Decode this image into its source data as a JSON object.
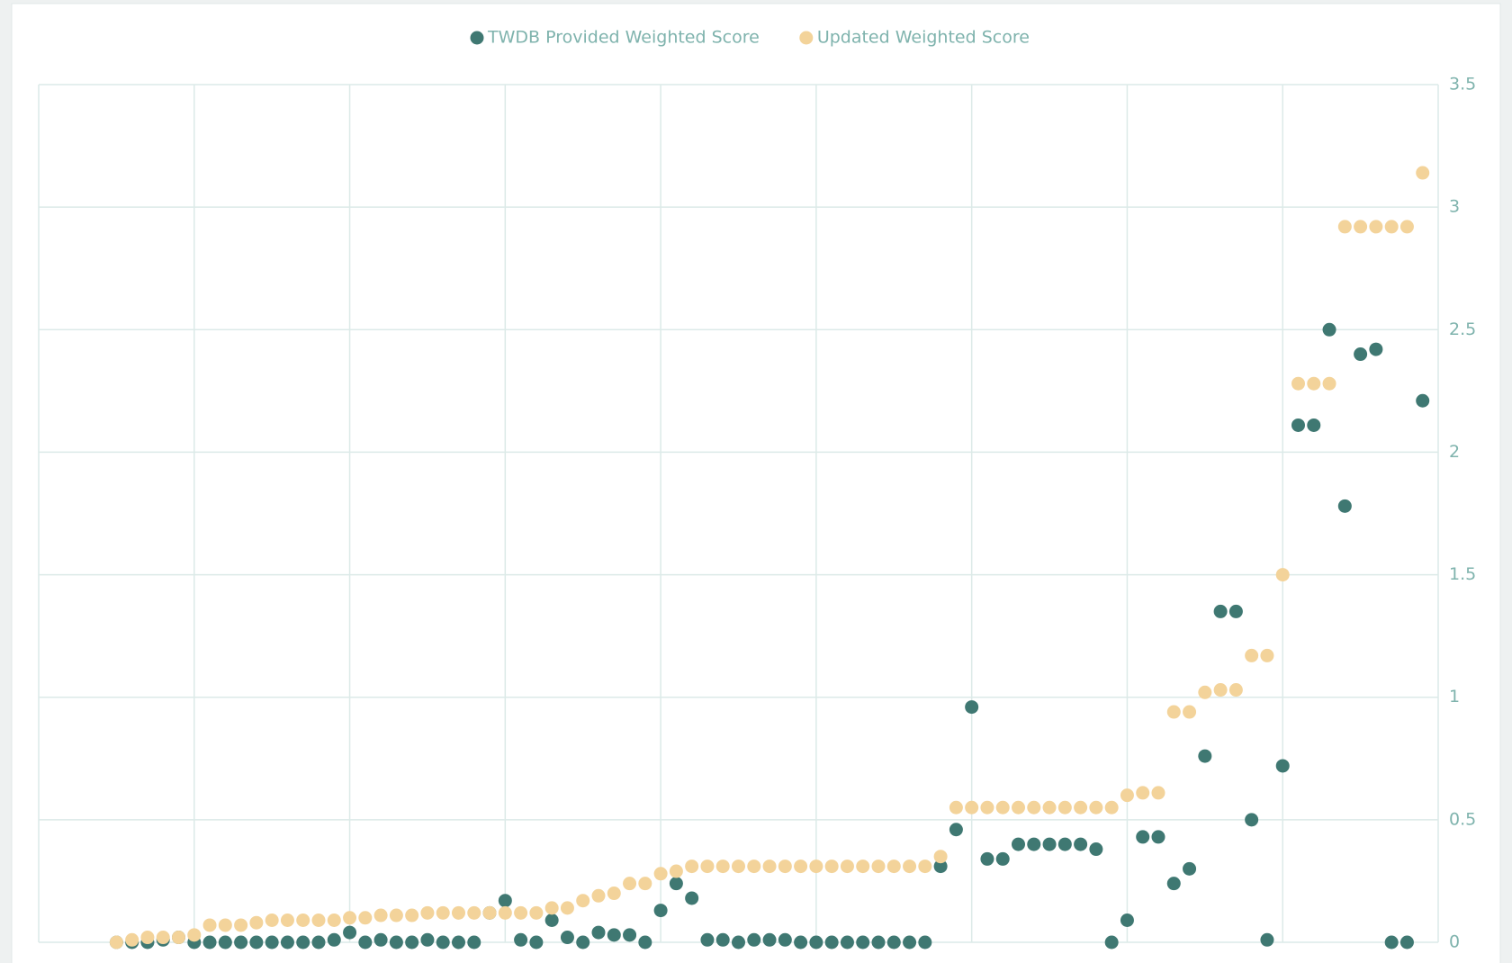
{
  "chart_data": {
    "type": "scatter",
    "x": [
      5,
      6,
      7,
      8,
      9,
      10,
      11,
      12,
      13,
      14,
      15,
      16,
      17,
      18,
      19,
      20,
      21,
      22,
      23,
      24,
      25,
      26,
      27,
      28,
      29,
      30,
      31,
      32,
      33,
      34,
      35,
      36,
      37,
      38,
      39,
      40,
      41,
      42,
      43,
      44,
      45,
      46,
      47,
      48,
      49,
      50,
      51,
      52,
      53,
      54,
      55,
      56,
      57,
      58,
      59,
      60,
      61,
      62,
      63,
      64,
      65,
      66,
      67,
      68,
      69,
      70,
      71,
      72,
      73,
      74,
      75,
      76,
      77,
      78,
      79,
      80,
      81,
      82,
      83,
      84,
      85,
      86,
      87,
      88,
      89
    ],
    "series": [
      {
        "name": "TWDB Provided Weighted Score",
        "color": "#3f7872",
        "values": [
          0,
          0,
          0,
          0.01,
          0.02,
          0,
          0,
          0,
          0,
          0,
          0,
          0,
          0,
          0,
          0.01,
          0.04,
          0,
          0.01,
          0,
          0,
          0.01,
          0,
          0,
          0,
          0.12,
          0.17,
          0.01,
          0,
          0.09,
          0.02,
          0,
          0.04,
          0.03,
          0.03,
          0,
          0.13,
          0.24,
          0.18,
          0.01,
          0.01,
          0,
          0.01,
          0.01,
          0.01,
          0,
          0,
          0,
          0,
          0,
          0,
          0,
          0,
          0,
          0.31,
          0.46,
          0.96,
          0.34,
          0.34,
          0.4,
          0.4,
          0.4,
          0.4,
          0.4,
          0.38,
          0,
          0.09,
          0.43,
          0.43,
          0.24,
          0.3,
          0.76,
          1.35,
          1.35,
          0.5,
          0.01,
          0.72,
          2.11,
          2.11,
          2.5,
          1.78,
          2.4,
          2.42,
          0,
          0,
          2.21
        ]
      },
      {
        "name": "Updated Weighted Score",
        "color": "#f3d39a",
        "values": [
          0,
          0.01,
          0.02,
          0.02,
          0.02,
          0.03,
          0.07,
          0.07,
          0.07,
          0.08,
          0.09,
          0.09,
          0.09,
          0.09,
          0.09,
          0.1,
          0.1,
          0.11,
          0.11,
          0.11,
          0.12,
          0.12,
          0.12,
          0.12,
          0.12,
          0.12,
          0.12,
          0.12,
          0.14,
          0.14,
          0.17,
          0.19,
          0.2,
          0.24,
          0.24,
          0.28,
          0.29,
          0.31,
          0.31,
          0.31,
          0.31,
          0.31,
          0.31,
          0.31,
          0.31,
          0.31,
          0.31,
          0.31,
          0.31,
          0.31,
          0.31,
          0.31,
          0.31,
          0.35,
          0.55,
          0.55,
          0.55,
          0.55,
          0.55,
          0.55,
          0.55,
          0.55,
          0.55,
          0.55,
          0.55,
          0.6,
          0.61,
          0.61,
          0.94,
          0.94,
          1.02,
          1.03,
          1.03,
          1.17,
          1.17,
          1.5,
          2.28,
          2.28,
          2.28,
          2.92,
          2.92,
          2.92,
          2.92,
          2.92,
          3.14
        ]
      }
    ],
    "xlim": [
      0,
      90
    ],
    "xticks": [
      0,
      10,
      20,
      30,
      40,
      50,
      60,
      70,
      80,
      90
    ],
    "ylim": [
      0,
      3.5
    ],
    "yticks": [
      0,
      0.5,
      1,
      1.5,
      2,
      2.5,
      3,
      3.5
    ],
    "grid": true,
    "legend": "top"
  }
}
